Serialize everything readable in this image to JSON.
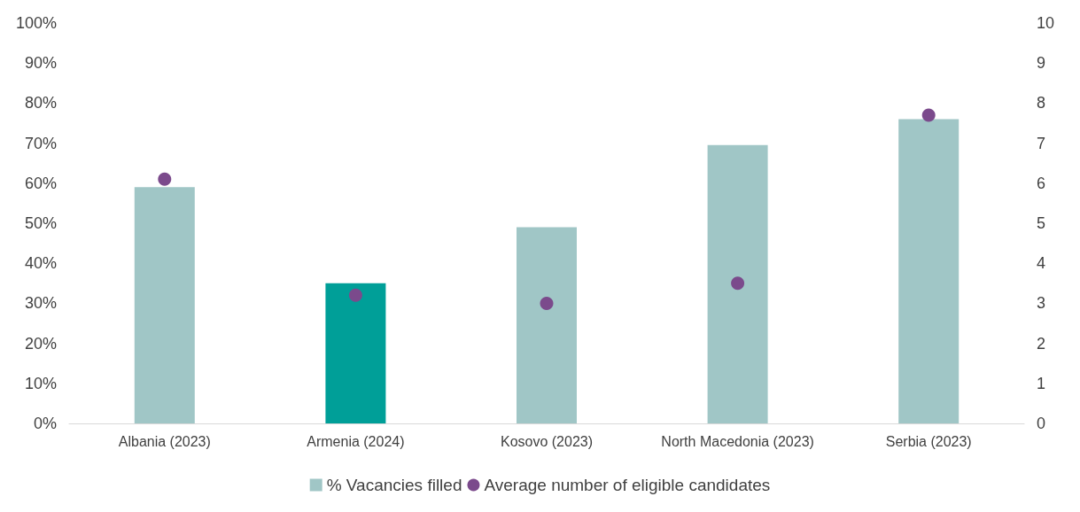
{
  "chart_data": {
    "type": "bar",
    "categories": [
      "Albania (2023)",
      "Armenia (2024)",
      "Kosovo (2023)",
      "North Macedonia (2023)",
      "Serbia (2023)"
    ],
    "series": [
      {
        "name": "% Vacancies filled",
        "color": "#a0c6c6",
        "colors": [
          "#a0c6c6",
          "#009f98",
          "#a0c6c6",
          "#a0c6c6",
          "#a0c6c6"
        ],
        "values": [
          59,
          35,
          49,
          69.5,
          76
        ]
      },
      {
        "name": "Average number of eligible candidates",
        "type": "scatter",
        "axis": "y2",
        "color": "#7b4a8c",
        "values": [
          6.1,
          3.2,
          3.0,
          3.5,
          7.7
        ]
      }
    ],
    "ylim": [
      0,
      100
    ],
    "yticks": [
      {
        "value": 0,
        "label": "0%"
      },
      {
        "value": 10,
        "label": "10%"
      },
      {
        "value": 20,
        "label": "20%"
      },
      {
        "value": 30,
        "label": "30%"
      },
      {
        "value": 40,
        "label": "40%"
      },
      {
        "value": 50,
        "label": "50%"
      },
      {
        "value": 60,
        "label": "60%"
      },
      {
        "value": 70,
        "label": "70%"
      },
      {
        "value": 80,
        "label": "80%"
      },
      {
        "value": 90,
        "label": "90%"
      },
      {
        "value": 100,
        "label": "100%"
      }
    ],
    "y2lim": [
      0,
      10
    ],
    "y2ticks": [
      0,
      1,
      2,
      3,
      4,
      5,
      6,
      7,
      8,
      9,
      10
    ],
    "grid": false,
    "legend": "bottom",
    "marker": "circle"
  }
}
